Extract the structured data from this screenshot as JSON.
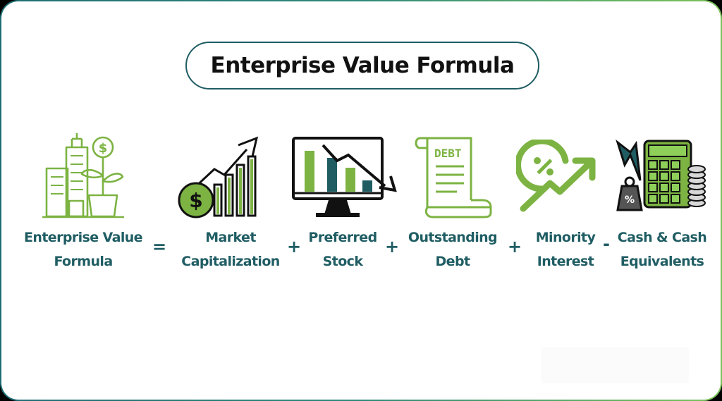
{
  "title": "Enterprise Value Formula",
  "terms": [
    {
      "line1": "Enterprise Value",
      "line2": "Formula",
      "icon": "building-growth-icon"
    },
    {
      "line1": "Market",
      "line2": "Capitalization",
      "icon": "market-cap-icon"
    },
    {
      "line1": "Preferred",
      "line2": "Stock",
      "icon": "stock-monitor-icon"
    },
    {
      "line1": "Outstanding",
      "line2": "Debt",
      "icon": "debt-document-icon"
    },
    {
      "line1": "Minority",
      "line2": "Interest",
      "icon": "percent-growth-icon"
    },
    {
      "line1": "Cash & Cash",
      "line2": "Equivalents",
      "icon": "calculator-cash-icon"
    }
  ],
  "operators": [
    "=",
    "+",
    "+",
    "+",
    "-"
  ],
  "debt_doc_label": "DEBT",
  "weight_label": "%",
  "colors": {
    "green": "#7cb342",
    "dark": "#1f5d63",
    "black": "#111111"
  }
}
